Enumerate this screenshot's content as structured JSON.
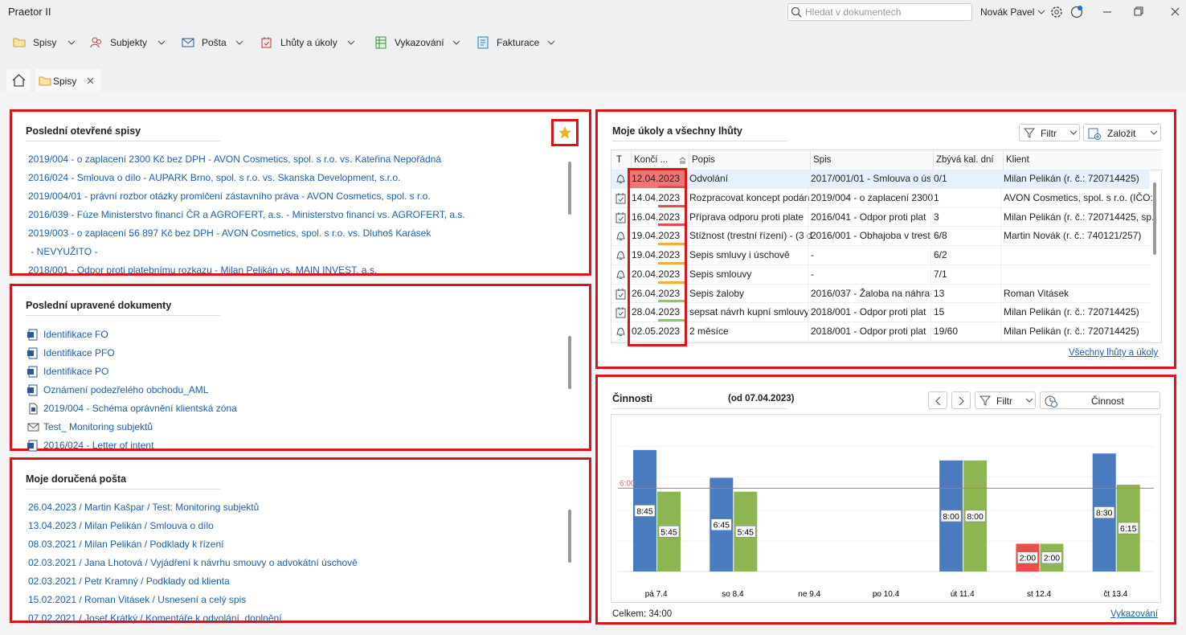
{
  "app": {
    "title": "Praetor II",
    "search_placeholder": "Hledat v dokumentech",
    "user": "Novák Pavel"
  },
  "menu": [
    "Spisy",
    "Subjekty",
    "Pošta",
    "Lhůty a úkoly",
    "Vykazování",
    "Fakturace"
  ],
  "tabs": [
    "Spisy"
  ],
  "recent_files": {
    "title": "Poslední otevřené spisy",
    "items": [
      "2019/004 - o zaplacení 2300 Kč bez DPH - AVON Cosmetics, spol. s r.o. vs. Kateřina Nepořádná",
      "2016/024 - Smlouva o dílo - AUPARK Brno, spol. s r.o. vs. Skanska Development, s.r.o.",
      "2019/004/01 - právní rozbor otázky promlčení zástavního práva - AVON Cosmetics, spol. s r.o.",
      "2016/039 - Fúze Ministerstvo financí ČR a AGROFERT, a.s. - Ministerstvo financí vs. AGROFERT, a.s.",
      "2019/003 - o zaplacení 56 897 Kč bez DPH - AVON Cosmetics, spol. s r.o. vs. Dluhoš Karásek",
      " - NEVYUŽITO -",
      "2018/001 - Odpor proti platebnímu rozkazu - Milan Pelikán vs. MAIN INVEST, a.s."
    ]
  },
  "recent_docs": {
    "title": "Poslední upravené dokumenty",
    "items": [
      {
        "icon": "word",
        "name": "Identifikace FO"
      },
      {
        "icon": "word",
        "name": "Identifikace PFO"
      },
      {
        "icon": "word",
        "name": "Identifikace PO"
      },
      {
        "icon": "word",
        "name": "Oznámení podezřelého obchodu_AML"
      },
      {
        "icon": "file",
        "name": "2019/004 - Schéma oprávnění klientská zóna"
      },
      {
        "icon": "mail",
        "name": "Test_ Monitoring subjektů"
      },
      {
        "icon": "word",
        "name": "2016/024 - Letter of intent"
      }
    ]
  },
  "mail": {
    "title": "Moje doručená pošta",
    "items": [
      "26.04.2023 / Martin Kašpar / Test: Monitoring subjektů",
      "13.04.2023 / Milan Pelikán / Smlouva o dílo",
      "08.03.2021 / Milan Pelikán / Podklady k řízení",
      "02.03.2021 / Jana Lhotová / Vyjádření k návrhu smouvy o advokátní úschově",
      "02.03.2021 / Petr Kramný / Podklady od klienta",
      "15.02.2021 / Roman Vitásek / Usnesení a celý spis",
      "07.02.2021 / Josef Krátký / Komentáře k odvolání, doplnění"
    ]
  },
  "tasks": {
    "title": "Moje úkoly a všechny lhůty",
    "filter": "Filtr",
    "create": "Založit",
    "columns": [
      "T",
      "Končí ...",
      "Popis",
      "Spis",
      "Zbývá kal. dní",
      "Klient"
    ],
    "selected_row": 0,
    "rows": [
      {
        "icon": "bell",
        "due": "12.04.2023",
        "description": "Odvolání",
        "file": "2017/001/01 - Smlouva o ús",
        "days_left": "0/1",
        "client": "Milan Pelikán (r. č.: 720714425)",
        "urgency_color": "#e05050"
      },
      {
        "icon": "task",
        "due": "14.04.2023",
        "description": "Rozpracovat koncept podán",
        "file": "2019/004 - o zaplacení 2300",
        "days_left": "1",
        "client": "AVON Cosmetics, spol. s r.o. (IČO:",
        "urgency_color": "#e05050"
      },
      {
        "icon": "task",
        "due": "16.04.2023",
        "description": "Příprava odporu proti plate",
        "file": "2016/041 - Odpor proti plat",
        "days_left": "3",
        "client": "Milan Pelikán (r. č.: 720714425, sp.",
        "urgency_color": "#e05050"
      },
      {
        "icon": "bell",
        "due": "19.04.2023",
        "description": "Stížnost (trestní řízení) - (3 d",
        "file": "2016/001 - Obhajoba v trest",
        "days_left": "6/8",
        "client": "Martin Novák (r. č.: 740121/257)",
        "urgency_color": "#f0b040"
      },
      {
        "icon": "bell",
        "due": "19.04.2023",
        "description": "Sepis smluvy i úschově",
        "file": "-",
        "days_left": "6/2",
        "client": null,
        "urgency_color": "#f0b040"
      },
      {
        "icon": "bell",
        "due": "20.04.2023",
        "description": "Sepis smlouvy",
        "file": "-",
        "days_left": "7/1",
        "client": null,
        "urgency_color": "#f0b040"
      },
      {
        "icon": "task",
        "due": "26.04.2023",
        "description": "Sepis žaloby",
        "file": "2016/037 - Žaloba na náhra",
        "days_left": "13",
        "client": "Roman Vitásek",
        "urgency_color": "#8cc860"
      },
      {
        "icon": "task",
        "due": "28.04.2023",
        "description": "sepsat návrh kupní smlouvy",
        "file": "2018/001 - Odpor proti plat",
        "days_left": "15",
        "client": "Milan Pelikán (r. č.: 720714425)",
        "urgency_color": "#8cc860"
      },
      {
        "icon": "bell",
        "due": "02.05.2023",
        "description": "2 měsíce",
        "file": "2018/001 - Odpor proti plat",
        "days_left": "19/60",
        "client": "Milan Pelikán (r. č.: 720714425)",
        "urgency_color": null
      }
    ],
    "link": "Všechny lhůty a úkoly"
  },
  "activities": {
    "title": "Činnosti",
    "period": "(od 07.04.2023)",
    "filter": "Filtr",
    "button": "Činnost",
    "total": "Celkem: 34:00",
    "link": "Vykazování"
  },
  "chart_data": {
    "type": "bar",
    "categories": [
      "pá 7.4",
      "so 8.4",
      "ne 9.4",
      "po 10.4",
      "út 11.4",
      "st 12.4",
      "čt 13.4"
    ],
    "series": [
      {
        "color": "#4a7bbf",
        "values": [
          8.75,
          6.75,
          null,
          null,
          8,
          2,
          8.5
        ],
        "value_labels": [
          "8:45",
          "6:45",
          null,
          null,
          "8:00",
          "2:00",
          "8:30"
        ],
        "colors": [
          "#4a7bbf",
          "#4a7bbf",
          null,
          null,
          "#4a7bbf",
          "#ef4b4b",
          "#4a7bbf"
        ]
      },
      {
        "color": "#8db552",
        "values": [
          5.75,
          5.75,
          null,
          null,
          8,
          2,
          6.25
        ],
        "value_labels": [
          "5:45",
          "5:45",
          null,
          null,
          "8:00",
          "2:00",
          "6:15"
        ]
      }
    ],
    "ylim": [
      0,
      11
    ],
    "reference": {
      "value": 6,
      "label": "6:00",
      "color": "#d96a6a"
    }
  }
}
